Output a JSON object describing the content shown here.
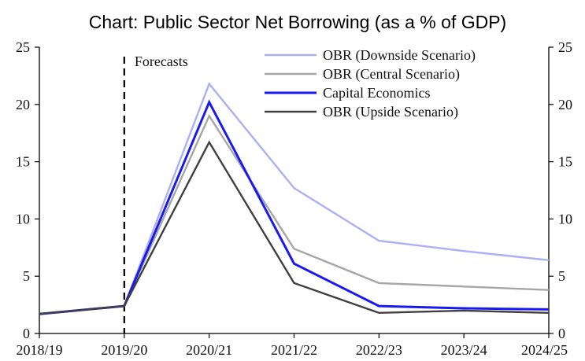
{
  "chart_data": {
    "type": "line",
    "title": "Chart: Public Sector Net Borrowing (as a % of GDP)",
    "categories": [
      "2018/19",
      "2019/20",
      "2020/21",
      "2021/22",
      "2022/23",
      "2023/24",
      "2024/25"
    ],
    "ylim": [
      0,
      25
    ],
    "yticks": [
      0,
      5,
      10,
      15,
      20,
      25
    ],
    "grid": false,
    "legend_position": "top-right",
    "annotation": "Forecasts",
    "forecast_start": "2019/20",
    "series": [
      {
        "name": "OBR (Downside Scenario)",
        "color": "#aab0f5",
        "values": [
          1.7,
          2.4,
          21.8,
          12.7,
          8.1,
          7.2,
          6.4
        ]
      },
      {
        "name": "OBR (Central Scenario)",
        "color": "#a6a6a6",
        "values": [
          1.7,
          2.4,
          19.0,
          7.4,
          4.4,
          4.1,
          3.8
        ]
      },
      {
        "name": "Capital Economics",
        "color": "#1a1aee",
        "values": [
          1.7,
          2.4,
          20.2,
          6.1,
          2.4,
          2.2,
          2.1
        ]
      },
      {
        "name": "OBR (Upside Scenario)",
        "color": "#404040",
        "values": [
          1.7,
          2.4,
          16.7,
          4.4,
          1.8,
          2.0,
          1.8
        ]
      }
    ]
  }
}
